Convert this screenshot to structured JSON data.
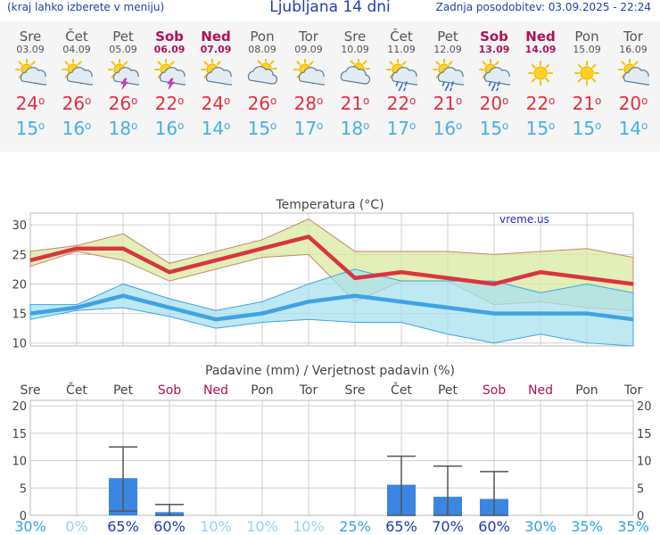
{
  "header": {
    "hint": "(kraj lahko izberete v meniju)",
    "title": "Ljubljana 14 dni",
    "updated": "Zadnja posodobitev: 03.09.2025 - 22:24"
  },
  "days": [
    {
      "name": "Sre",
      "date": "03.09",
      "icon": "sun-cloud-icon",
      "weekend": false,
      "max": "24",
      "min": "15"
    },
    {
      "name": "Čet",
      "date": "04.09",
      "icon": "sun-cloud-icon",
      "weekend": false,
      "max": "26",
      "min": "16"
    },
    {
      "name": "Pet",
      "date": "05.09",
      "icon": "sun-cloud-thunder-icon",
      "weekend": false,
      "max": "26",
      "min": "18"
    },
    {
      "name": "Sob",
      "date": "06.09",
      "icon": "sun-cloud-thunder-icon",
      "weekend": true,
      "max": "22",
      "min": "16"
    },
    {
      "name": "Ned",
      "date": "07.09",
      "icon": "sun-cloud-icon",
      "weekend": true,
      "max": "24",
      "min": "14"
    },
    {
      "name": "Pon",
      "date": "08.09",
      "icon": "cloud-sun-icon",
      "weekend": false,
      "max": "26",
      "min": "15"
    },
    {
      "name": "Tor",
      "date": "09.09",
      "icon": "sun-cloud-icon",
      "weekend": false,
      "max": "28",
      "min": "17"
    },
    {
      "name": "Sre",
      "date": "10.09",
      "icon": "cloud-sun-icon",
      "weekend": false,
      "max": "21",
      "min": "18"
    },
    {
      "name": "Čet",
      "date": "11.09",
      "icon": "sun-cloud-rain-icon",
      "weekend": false,
      "max": "22",
      "min": "17"
    },
    {
      "name": "Pet",
      "date": "12.09",
      "icon": "sun-cloud-rain-icon",
      "weekend": false,
      "max": "21",
      "min": "16"
    },
    {
      "name": "Sob",
      "date": "13.09",
      "icon": "sun-cloud-rain-icon",
      "weekend": true,
      "max": "20",
      "min": "15"
    },
    {
      "name": "Ned",
      "date": "14.09",
      "icon": "sun-icon",
      "weekend": true,
      "max": "22",
      "min": "15"
    },
    {
      "name": "Pon",
      "date": "15.09",
      "icon": "sun-icon",
      "weekend": false,
      "max": "21",
      "min": "15"
    },
    {
      "name": "Tor",
      "date": "16.09",
      "icon": "sun-cloud-icon",
      "weekend": false,
      "max": "20",
      "min": "14"
    }
  ],
  "chart_data": [
    {
      "type": "line",
      "title": "Temperatura (°C)",
      "watermark": "vreme.us",
      "x": [
        "Sre",
        "Čet",
        "Pet",
        "Sob",
        "Ned",
        "Pon",
        "Tor",
        "Sre",
        "Čet",
        "Pet",
        "Sob",
        "Ned",
        "Pon",
        "Tor"
      ],
      "ylim": [
        9.5,
        32
      ],
      "yticks": [
        10,
        15,
        20,
        25,
        30
      ],
      "grid": true,
      "series": [
        {
          "role": "max",
          "color": "#d9353f",
          "values": [
            24,
            26,
            26,
            22,
            24,
            26,
            28,
            21,
            22,
            21,
            20,
            22,
            21,
            20
          ]
        },
        {
          "role": "min",
          "color": "#3ea3e4",
          "values": [
            15,
            16,
            18,
            16,
            14,
            15,
            17,
            18,
            17,
            16,
            15,
            15,
            15,
            14
          ]
        }
      ],
      "bands": [
        {
          "role": "max-range",
          "color": "#d8eaa0",
          "upper": [
            25.5,
            26.5,
            28.5,
            23.5,
            25.5,
            27.5,
            31,
            25.5,
            25.5,
            25.5,
            25,
            25.5,
            26,
            24.5
          ],
          "lower": [
            23,
            25.5,
            24,
            20.5,
            22.5,
            24.5,
            25,
            17,
            20.5,
            20.5,
            16.5,
            17,
            16,
            15.5
          ]
        },
        {
          "role": "min-range",
          "color": "#a8e0ee",
          "upper": [
            16.5,
            16.5,
            20,
            17.5,
            15.5,
            17,
            20,
            22.5,
            20.5,
            20.5,
            20.5,
            18.5,
            20,
            18.5
          ],
          "lower": [
            14,
            15.5,
            16,
            14.5,
            12.5,
            13.5,
            14,
            13.5,
            13.5,
            11.5,
            10,
            11.5,
            10,
            9.5
          ]
        }
      ]
    },
    {
      "type": "bar",
      "title": "Padavine (mm) / Verjetnost padavin (%)",
      "categories": [
        "Sre",
        "Čet",
        "Pet",
        "Sob",
        "Ned",
        "Pon",
        "Tor",
        "Sre",
        "Čet",
        "Pet",
        "Sob",
        "Ned",
        "Pon",
        "Tor"
      ],
      "weekend": [
        false,
        false,
        false,
        true,
        true,
        false,
        false,
        false,
        false,
        false,
        true,
        true,
        false,
        false
      ],
      "values": [
        0,
        0,
        6.8,
        0.6,
        0,
        0,
        0,
        0,
        5.6,
        3.4,
        3,
        0,
        0,
        0
      ],
      "error_high": [
        0,
        0,
        12.5,
        2,
        0,
        0,
        0,
        0,
        10.8,
        9,
        8,
        0,
        0,
        0
      ],
      "error_low": [
        0,
        0,
        0.8,
        0,
        0,
        0,
        0,
        0,
        0,
        0,
        0,
        0,
        0,
        0
      ],
      "ylim": [
        0,
        21
      ],
      "yticks": [
        0,
        5,
        10,
        15,
        20
      ],
      "probability": [
        "30%",
        "0%",
        "65%",
        "60%",
        "10%",
        "10%",
        "10%",
        "25%",
        "65%",
        "70%",
        "60%",
        "30%",
        "35%",
        "35%"
      ],
      "bar_color": "#3a86e0"
    }
  ]
}
